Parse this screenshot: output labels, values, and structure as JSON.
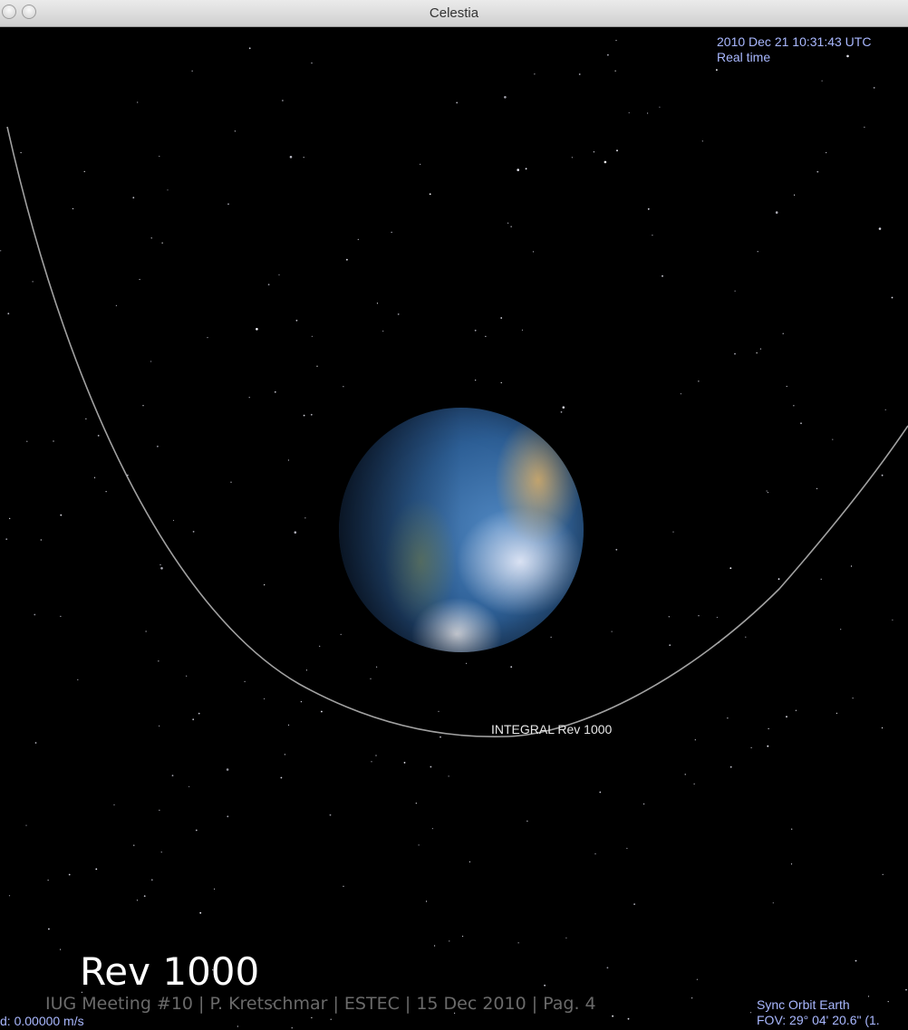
{
  "window": {
    "title": "Celestia",
    "close_icon": "close-icon",
    "minimize_icon": "minimize-icon"
  },
  "hud": {
    "datetime": "2010 Dec 21 10:31:43 UTC",
    "time_rate": "Real time",
    "sync_mode": "Sync Orbit Earth",
    "fov": "FOV: 29° 04' 20.6\" (1.",
    "speed": "d: 0.00000 m/s"
  },
  "scene": {
    "object_label": "INTEGRAL Rev 1000",
    "body_icon": "earth-globe-icon",
    "orbit_color": "#bdbdbd",
    "hud_color": "#a9b8ff"
  },
  "overlay": {
    "title": "Rev 1000",
    "footer": "IUG Meeting #10 | P. Kretschmar | ESTEC | 15 Dec 2010 | Pag. 4"
  }
}
